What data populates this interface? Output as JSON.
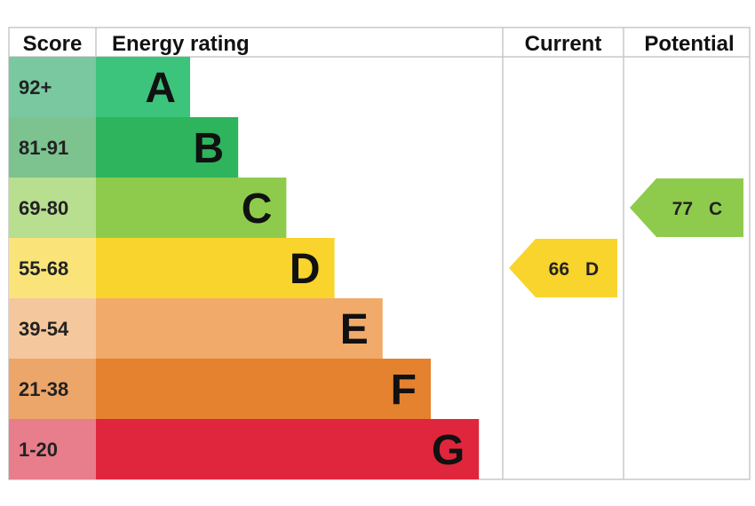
{
  "chart_data": {
    "type": "table",
    "headers": {
      "score": "Score",
      "rating": "Energy rating",
      "current": "Current",
      "potential": "Potential"
    },
    "bands": [
      {
        "score": "92+",
        "letter": "A",
        "color": "#3cc47c",
        "score_color": "#79c8a0"
      },
      {
        "score": "81-91",
        "letter": "B",
        "color": "#2db45c",
        "score_color": "#7cc38f"
      },
      {
        "score": "69-80",
        "letter": "C",
        "color": "#8ecb4d",
        "score_color": "#b8de90"
      },
      {
        "score": "55-68",
        "letter": "D",
        "color": "#f9d42c",
        "score_color": "#fae47a"
      },
      {
        "score": "39-54",
        "letter": "E",
        "color": "#f1aa6a",
        "score_color": "#f5c79c"
      },
      {
        "score": "21-38",
        "letter": "F",
        "color": "#e4822f",
        "score_color": "#eca66a"
      },
      {
        "score": "1-20",
        "letter": "G",
        "color": "#df263d",
        "score_color": "#e87d8b"
      }
    ],
    "current": {
      "value": 66,
      "letter": "D",
      "color": "#f9d42c"
    },
    "potential": {
      "value": 77,
      "letter": "C",
      "color": "#8ecb4d"
    }
  }
}
